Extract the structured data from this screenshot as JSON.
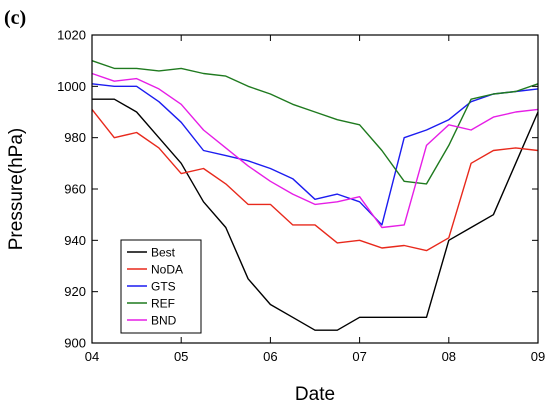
{
  "panel_label": "(c)",
  "chart_data": {
    "type": "line",
    "title": "",
    "xlabel": "Date",
    "ylabel": "Pressure(hPa)",
    "xlim": [
      4,
      9
    ],
    "ylim": [
      900,
      1020
    ],
    "x_ticks": [
      4,
      5,
      6,
      7,
      8,
      9
    ],
    "x_tick_labels": [
      "04",
      "05",
      "06",
      "07",
      "08",
      "09"
    ],
    "y_ticks": [
      900,
      920,
      940,
      960,
      980,
      1000,
      1020
    ],
    "y_tick_labels": [
      "900",
      "920",
      "940",
      "960",
      "980",
      "1000",
      "1020"
    ],
    "grid": false,
    "legend_placement": "bottom-left",
    "series": [
      {
        "name": "Best",
        "color": "#000000",
        "x": [
          4,
          4.25,
          4.5,
          4.75,
          5,
          5.25,
          5.5,
          5.75,
          6,
          6.25,
          6.5,
          6.75,
          7,
          7.25,
          7.5,
          7.75,
          8,
          8.25,
          8.5,
          8.75,
          9
        ],
        "y": [
          995,
          995,
          990,
          980,
          970,
          955,
          945,
          925,
          915,
          910,
          905,
          905,
          910,
          910,
          910,
          910,
          940,
          945,
          950,
          970,
          990
        ]
      },
      {
        "name": "NoDA",
        "color": "#e8291c",
        "x": [
          4,
          4.25,
          4.5,
          4.75,
          5,
          5.25,
          5.5,
          5.75,
          6,
          6.25,
          6.5,
          6.75,
          7,
          7.25,
          7.5,
          7.75,
          8,
          8.25,
          8.5,
          8.75,
          9
        ],
        "y": [
          991,
          980,
          982,
          976,
          966,
          968,
          962,
          954,
          954,
          946,
          946,
          939,
          940,
          937,
          938,
          936,
          941,
          970,
          975,
          976,
          975
        ]
      },
      {
        "name": "GTS",
        "color": "#1c1cf0",
        "x": [
          4,
          4.25,
          4.5,
          4.75,
          5,
          5.25,
          5.5,
          5.75,
          6,
          6.25,
          6.5,
          6.75,
          7,
          7.25,
          7.5,
          7.75,
          8,
          8.25,
          8.5,
          8.75,
          9
        ],
        "y": [
          1001,
          1000,
          1000,
          994,
          986,
          975,
          973,
          971,
          968,
          964,
          956,
          958,
          955,
          946,
          980,
          983,
          987,
          994,
          997,
          998,
          999
        ]
      },
      {
        "name": "REF",
        "color": "#1f7a1f",
        "x": [
          4,
          4.25,
          4.5,
          4.75,
          5,
          5.25,
          5.5,
          5.75,
          6,
          6.25,
          6.5,
          6.75,
          7,
          7.25,
          7.5,
          7.75,
          8,
          8.25,
          8.5,
          8.75,
          9
        ],
        "y": [
          1010,
          1007,
          1007,
          1006,
          1007,
          1005,
          1004,
          1000,
          997,
          993,
          990,
          987,
          985,
          975,
          963,
          962,
          977,
          995,
          997,
          998,
          1001
        ]
      },
      {
        "name": "BND",
        "color": "#e61ee6",
        "x": [
          4,
          4.25,
          4.5,
          4.75,
          5,
          5.25,
          5.5,
          5.75,
          6,
          6.25,
          6.5,
          6.75,
          7,
          7.25,
          7.5,
          7.75,
          8,
          8.25,
          8.5,
          8.75,
          9
        ],
        "y": [
          1005,
          1002,
          1003,
          999,
          993,
          983,
          976,
          969,
          963,
          958,
          954,
          955,
          957,
          945,
          946,
          977,
          985,
          983,
          988,
          990,
          991
        ]
      }
    ]
  }
}
